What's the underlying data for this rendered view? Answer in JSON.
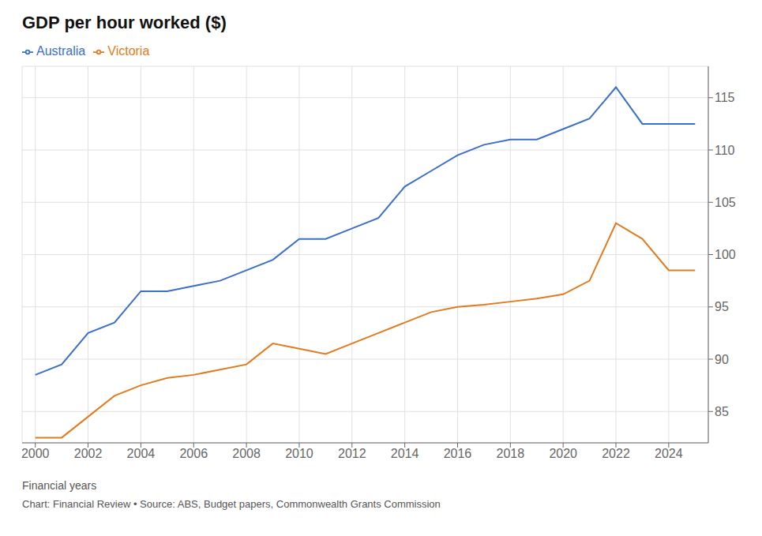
{
  "chart_data": {
    "type": "line",
    "title": "GDP per hour worked ($)",
    "subtitle": "Financial years",
    "caption": "Chart: Financial Review • Source: ABS, Budget papers, Commonwealth Grants Commission",
    "x": [
      2000,
      2001,
      2002,
      2003,
      2004,
      2005,
      2006,
      2007,
      2008,
      2009,
      2010,
      2011,
      2012,
      2013,
      2014,
      2015,
      2016,
      2017,
      2018,
      2019,
      2020,
      2021,
      2022,
      2023,
      2024,
      2025
    ],
    "series": [
      {
        "name": "Victoria",
        "color": "#E07B20",
        "values": [
          82.5,
          82.5,
          84.5,
          86.5,
          87.5,
          88.2,
          88.5,
          89.0,
          89.5,
          91.5,
          91.0,
          90.5,
          91.5,
          92.5,
          93.5,
          94.5,
          95.0,
          95.2,
          95.5,
          95.8,
          96.2,
          97.5,
          103.0,
          101.5,
          98.5,
          98.5
        ]
      },
      {
        "name": "Australia",
        "color": "#3B6FC9",
        "values": [
          88.5,
          89.5,
          92.5,
          93.5,
          96.5,
          96.5,
          97.0,
          97.5,
          98.5,
          99.5,
          101.5,
          101.5,
          102.5,
          103.5,
          106.5,
          108.0,
          109.5,
          110.5,
          111.0,
          111.0,
          112.0,
          113.0,
          116.0,
          112.5,
          112.5,
          112.5
        ]
      }
    ],
    "xlim": [
      1999.5,
      2025.5
    ],
    "xticks": [
      2000,
      2002,
      2004,
      2006,
      2008,
      2010,
      2012,
      2014,
      2016,
      2018,
      2020,
      2022,
      2024
    ],
    "ylim": [
      82,
      118
    ],
    "yticks": [
      85,
      90,
      95,
      100,
      105,
      110,
      115
    ],
    "grid": true,
    "legend": "top left"
  }
}
